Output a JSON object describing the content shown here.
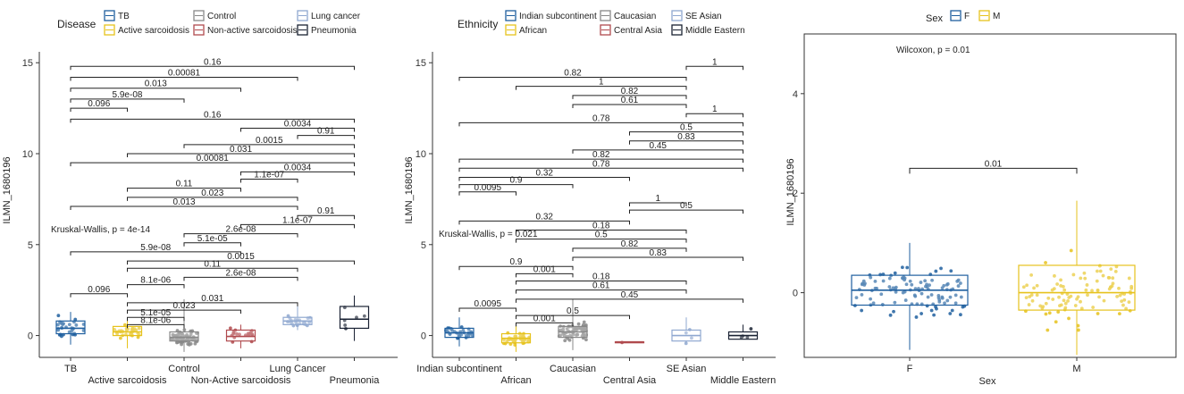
{
  "chart_data": [
    {
      "type": "box",
      "legend_title": "Disease",
      "legend": [
        {
          "name": "TB",
          "color": "#1f5f9f"
        },
        {
          "name": "Control",
          "color": "#888888"
        },
        {
          "name": "Lung cancer",
          "color": "#8fa8d0"
        },
        {
          "name": "Active sarcoidosis",
          "color": "#e6c21c"
        },
        {
          "name": "Non-active sarcoidosis",
          "color": "#b04a4e"
        },
        {
          "name": "Pneumonia",
          "color": "#1a2233"
        }
      ],
      "categories": [
        "TB",
        "Active sarcoidosis",
        "Control",
        "Non-Active sarcoidosis",
        "Lung Cancer",
        "Pneumonia"
      ],
      "ylabel": "ILMN_1680196",
      "yticks": [
        0,
        5,
        10,
        15
      ],
      "ylim": [
        -1.2,
        15.6
      ],
      "kruskal": "Kruskal-Wallis, p = 4e-14",
      "boxes": [
        {
          "q1": 0.1,
          "median": 0.4,
          "q3": 0.8,
          "lo": -0.5,
          "hi": 1.3
        },
        {
          "q1": 0.0,
          "median": 0.2,
          "q3": 0.5,
          "lo": -0.7,
          "hi": 1.0
        },
        {
          "q1": -0.3,
          "median": -0.1,
          "q3": 0.2,
          "lo": -0.9,
          "hi": 2.0
        },
        {
          "q1": -0.3,
          "median": -0.05,
          "q3": 0.3,
          "lo": -0.7,
          "hi": 0.6
        },
        {
          "q1": 0.6,
          "median": 0.8,
          "q3": 1.0,
          "lo": 0.3,
          "hi": 1.8
        },
        {
          "q1": 0.4,
          "median": 0.9,
          "q3": 1.6,
          "lo": -0.3,
          "hi": 2.2
        }
      ],
      "comparisons": [
        {
          "a": 0,
          "b": 5,
          "y": 14.8,
          "label": "0.16"
        },
        {
          "a": 0,
          "b": 4,
          "y": 14.2,
          "label": "0.00081"
        },
        {
          "a": 0,
          "b": 3,
          "y": 13.6,
          "label": "0.013"
        },
        {
          "a": 0,
          "b": 2,
          "y": 13.0,
          "label": "5.9e-08"
        },
        {
          "a": 0,
          "b": 1,
          "y": 12.5,
          "label": "0.096"
        },
        {
          "a": 0,
          "b": 5,
          "y": 11.9,
          "label": "0.16"
        },
        {
          "a": 3,
          "b": 5,
          "y": 11.4,
          "label": "0.0034"
        },
        {
          "a": 4,
          "b": 5,
          "y": 11.0,
          "label": "0.91"
        },
        {
          "a": 2,
          "b": 5,
          "y": 10.5,
          "label": "0.0015"
        },
        {
          "a": 1,
          "b": 5,
          "y": 10.0,
          "label": "0.031"
        },
        {
          "a": 0,
          "b": 5,
          "y": 9.5,
          "label": "0.00081"
        },
        {
          "a": 3,
          "b": 5,
          "y": 9.0,
          "label": "0.0034"
        },
        {
          "a": 3,
          "b": 4,
          "y": 8.6,
          "label": "1.1e-07"
        },
        {
          "a": 1,
          "b": 3,
          "y": 8.1,
          "label": "0.11"
        },
        {
          "a": 1,
          "b": 4,
          "y": 7.6,
          "label": "0.023"
        },
        {
          "a": 0,
          "b": 4,
          "y": 7.1,
          "label": "0.013"
        },
        {
          "a": 4,
          "b": 5,
          "y": 6.6,
          "label": "0.91"
        },
        {
          "a": 3,
          "b": 5,
          "y": 6.1,
          "label": "1.1e-07"
        },
        {
          "a": 2,
          "b": 4,
          "y": 5.6,
          "label": "2.6e-08"
        },
        {
          "a": 2,
          "b": 3,
          "y": 5.1,
          "label": "5.1e-05"
        },
        {
          "a": 0,
          "b": 3,
          "y": 4.6,
          "label": "5.9e-08"
        },
        {
          "a": 1,
          "b": 5,
          "y": 4.1,
          "label": "0.0015"
        },
        {
          "a": 1,
          "b": 4,
          "y": 3.7,
          "label": "0.11"
        },
        {
          "a": 2,
          "b": 4,
          "y": 3.2,
          "label": "2.6e-08"
        },
        {
          "a": 1,
          "b": 2,
          "y": 2.8,
          "label": "8.1e-06"
        },
        {
          "a": 0,
          "b": 1,
          "y": 2.3,
          "label": "0.096"
        },
        {
          "a": 1,
          "b": 4,
          "y": 1.8,
          "label": "0.031"
        },
        {
          "a": 1,
          "b": 3,
          "y": 1.4,
          "label": "0.023"
        },
        {
          "a": 1,
          "b": 2,
          "y": 1.0,
          "label": "5.1e-05"
        },
        {
          "a": 1,
          "b": 2,
          "y": 0.6,
          "label": "8.1e-06"
        }
      ]
    },
    {
      "type": "box",
      "legend_title": "Ethnicity",
      "legend": [
        {
          "name": "Indian subcontinent",
          "color": "#1f5f9f"
        },
        {
          "name": "Caucasian",
          "color": "#888888"
        },
        {
          "name": "SE Asian",
          "color": "#8fa8d0"
        },
        {
          "name": "African",
          "color": "#e6c21c"
        },
        {
          "name": "Central Asia",
          "color": "#b04a4e"
        },
        {
          "name": "Middle Eastern",
          "color": "#1a2233"
        }
      ],
      "categories": [
        "Indian subcontinent",
        "African",
        "Caucasian",
        "Central Asia",
        "SE Asian",
        "Middle Eastern"
      ],
      "ylabel": "ILMN_1680196",
      "yticks": [
        0,
        5,
        10,
        15
      ],
      "ylim": [
        -1.2,
        15.6
      ],
      "kruskal": "Kruskal-Wallis, p = 0.021",
      "boxes": [
        {
          "q1": -0.1,
          "median": 0.15,
          "q3": 0.4,
          "lo": -0.6,
          "hi": 1.0
        },
        {
          "q1": -0.4,
          "median": -0.15,
          "q3": 0.1,
          "lo": -0.9,
          "hi": 0.6
        },
        {
          "q1": -0.1,
          "median": 0.2,
          "q3": 0.5,
          "lo": -0.8,
          "hi": 2.0
        },
        {
          "q1": -0.35,
          "median": -0.35,
          "q3": -0.35,
          "lo": -0.35,
          "hi": -0.35
        },
        {
          "q1": -0.3,
          "median": 0.0,
          "q3": 0.3,
          "lo": -0.4,
          "hi": 1.0
        },
        {
          "q1": -0.2,
          "median": 0.0,
          "q3": 0.2,
          "lo": -0.2,
          "hi": 0.6
        }
      ],
      "comparisons": [
        {
          "a": 4,
          "b": 5,
          "y": 14.8,
          "label": "1"
        },
        {
          "a": 0,
          "b": 4,
          "y": 14.2,
          "label": "0.82"
        },
        {
          "a": 1,
          "b": 4,
          "y": 13.7,
          "label": "1"
        },
        {
          "a": 2,
          "b": 4,
          "y": 13.2,
          "label": "0.82"
        },
        {
          "a": 2,
          "b": 4,
          "y": 12.7,
          "label": "0.61"
        },
        {
          "a": 4,
          "b": 5,
          "y": 12.2,
          "label": "1"
        },
        {
          "a": 0,
          "b": 5,
          "y": 11.7,
          "label": "0.78"
        },
        {
          "a": 3,
          "b": 5,
          "y": 11.2,
          "label": "0.5"
        },
        {
          "a": 3,
          "b": 5,
          "y": 10.7,
          "label": "0.83"
        },
        {
          "a": 2,
          "b": 5,
          "y": 10.2,
          "label": "0.45"
        },
        {
          "a": 0,
          "b": 5,
          "y": 9.7,
          "label": "0.82"
        },
        {
          "a": 0,
          "b": 5,
          "y": 9.2,
          "label": "0.78"
        },
        {
          "a": 0,
          "b": 3,
          "y": 8.7,
          "label": "0.32"
        },
        {
          "a": 0,
          "b": 2,
          "y": 8.3,
          "label": "0.9"
        },
        {
          "a": 0,
          "b": 1,
          "y": 7.9,
          "label": "0.0095"
        },
        {
          "a": 3,
          "b": 4,
          "y": 7.3,
          "label": "1"
        },
        {
          "a": 3,
          "b": 5,
          "y": 6.9,
          "label": "0.5"
        },
        {
          "a": 0,
          "b": 3,
          "y": 6.3,
          "label": "0.32"
        },
        {
          "a": 1,
          "b": 4,
          "y": 5.8,
          "label": "0.18"
        },
        {
          "a": 1,
          "b": 4,
          "y": 5.3,
          "label": "0.5"
        },
        {
          "a": 2,
          "b": 4,
          "y": 4.8,
          "label": "0.82"
        },
        {
          "a": 2,
          "b": 5,
          "y": 4.3,
          "label": "0.83"
        },
        {
          "a": 0,
          "b": 2,
          "y": 3.8,
          "label": "0.9"
        },
        {
          "a": 1,
          "b": 2,
          "y": 3.4,
          "label": "0.001"
        },
        {
          "a": 1,
          "b": 4,
          "y": 3.0,
          "label": "0.18"
        },
        {
          "a": 1,
          "b": 4,
          "y": 2.5,
          "label": "0.61"
        },
        {
          "a": 1,
          "b": 5,
          "y": 2.0,
          "label": "0.45"
        },
        {
          "a": 0,
          "b": 1,
          "y": 1.5,
          "label": "0.0095"
        },
        {
          "a": 1,
          "b": 3,
          "y": 1.1,
          "label": "0.5"
        },
        {
          "a": 1,
          "b": 2,
          "y": 0.7,
          "label": "0.001"
        }
      ]
    },
    {
      "type": "box",
      "legend_title": "Sex",
      "legend": [
        {
          "name": "F",
          "color": "#1f5f9f"
        },
        {
          "name": "M",
          "color": "#e6c21c"
        }
      ],
      "categories": [
        "F",
        "M"
      ],
      "xlabel": "Sex",
      "ylabel": "ILMN_1680196",
      "yticks": [
        0,
        2,
        4
      ],
      "ylim": [
        -1.3,
        5.2
      ],
      "test": "Wilcoxon, p = 0.01",
      "boxes": [
        {
          "q1": -0.25,
          "median": 0.05,
          "q3": 0.35,
          "lo": -1.15,
          "hi": 1.0
        },
        {
          "q1": -0.35,
          "median": 0.0,
          "q3": 0.55,
          "lo": -1.25,
          "hi": 1.85
        }
      ],
      "comparisons": [
        {
          "a": 0,
          "b": 1,
          "y": 2.5,
          "label": "0.01"
        }
      ]
    }
  ]
}
